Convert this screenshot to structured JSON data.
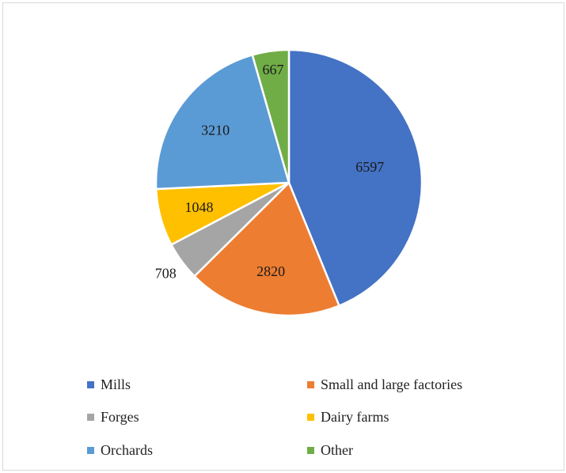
{
  "chart_data": {
    "type": "pie",
    "title": "",
    "slices": [
      {
        "label": "Mills",
        "value": 6597,
        "color": "#4472C4"
      },
      {
        "label": "Small and large factories",
        "value": 2820,
        "color": "#ED7D31"
      },
      {
        "label": "Forges",
        "value": 708,
        "color": "#A5A5A5"
      },
      {
        "label": "Dairy farms",
        "value": 1048,
        "color": "#FFC000"
      },
      {
        "label": "Orchards",
        "value": 3210,
        "color": "#5B9BD5"
      },
      {
        "label": "Other",
        "value": 667,
        "color": "#70AD47"
      }
    ],
    "legend_position": "bottom",
    "data_labels": true
  }
}
